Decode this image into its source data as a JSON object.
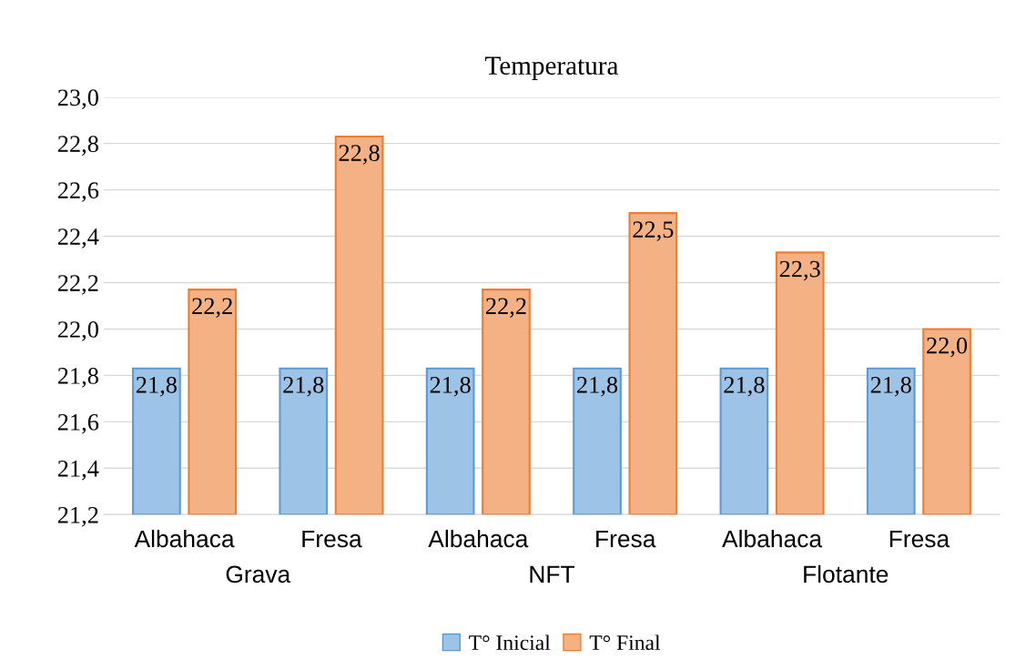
{
  "chart_data": {
    "type": "bar",
    "title": "Temperatura",
    "categories": [
      "Albahaca",
      "Fresa",
      "Albahaca",
      "Fresa",
      "Albahaca",
      "Fresa"
    ],
    "series": [
      {
        "name": "T° Inicial",
        "color": "#9dc3e6",
        "values": [
          21.83,
          21.83,
          21.83,
          21.83,
          21.83,
          21.83
        ],
        "value_labels": [
          "21,8",
          "21,8",
          "21,8",
          "21,8",
          "21,8",
          "21,8"
        ]
      },
      {
        "name": "T° Final",
        "color": "#f4b183",
        "values": [
          22.17,
          22.83,
          22.17,
          22.5,
          22.33,
          22.0
        ],
        "value_labels": [
          "22,2",
          "22,8",
          "22,2",
          "22,5",
          "22,3",
          "22,0"
        ]
      }
    ],
    "annotations": [
      "Grava",
      "NFT",
      "Flotante"
    ],
    "ylim": [
      21.2,
      23.0
    ],
    "yticks": [
      {
        "value": 21.2,
        "label": "21,2"
      },
      {
        "value": 21.4,
        "label": "21,4"
      },
      {
        "value": 21.6,
        "label": "21,6"
      },
      {
        "value": 21.8,
        "label": "21,8"
      },
      {
        "value": 22.0,
        "label": "22,0"
      },
      {
        "value": 22.2,
        "label": "22,2"
      },
      {
        "value": 22.4,
        "label": "22,4"
      },
      {
        "value": 22.6,
        "label": "22,6"
      },
      {
        "value": 22.8,
        "label": "22,8"
      },
      {
        "value": 23.0,
        "label": "23,0"
      }
    ],
    "grid": "y",
    "legend": "bottom"
  }
}
